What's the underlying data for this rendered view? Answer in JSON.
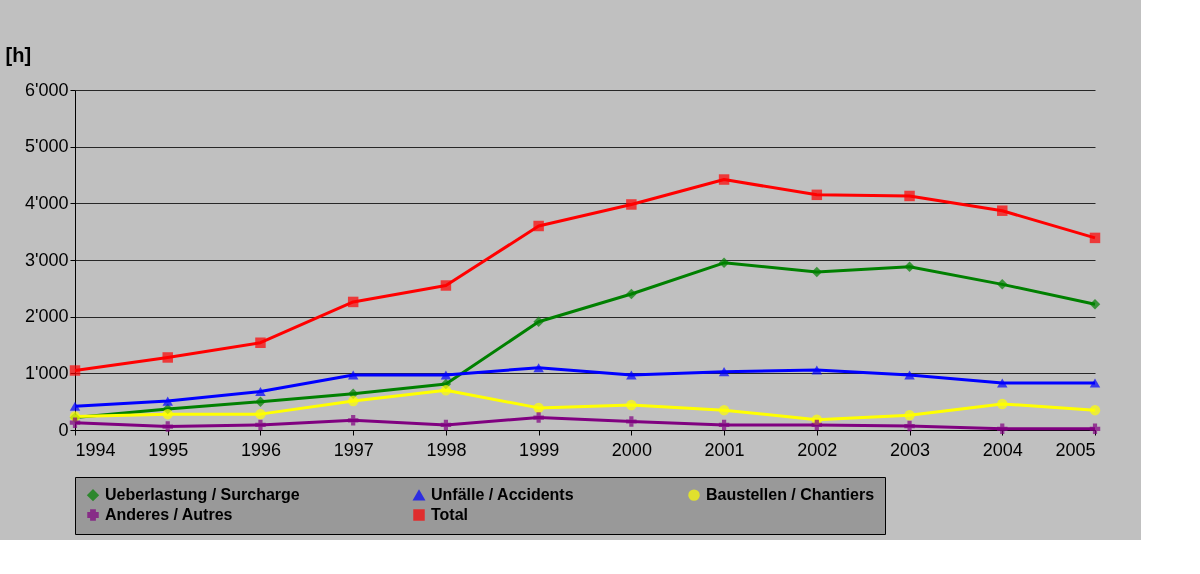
{
  "chart_data": {
    "type": "line",
    "ylabel": "[h]",
    "x": [
      1994,
      1995,
      1996,
      1997,
      1998,
      1999,
      2000,
      2001,
      2002,
      2003,
      2004,
      2005
    ],
    "xlim": [
      1994,
      2005
    ],
    "xticks": [
      1994,
      1995,
      1996,
      1997,
      1998,
      1999,
      2000,
      2001,
      2002,
      2003,
      2004,
      2005
    ],
    "ylim": [
      0,
      6000
    ],
    "yticks": [
      0,
      {
        "value": 1000,
        "label": "1'000"
      },
      {
        "value": 2000,
        "label": "2'000"
      },
      {
        "value": 3000,
        "label": "3'000"
      },
      {
        "value": 4000,
        "label": "4'000"
      },
      {
        "value": 5000,
        "label": "5'000"
      },
      {
        "value": 6000,
        "label": "6'000"
      }
    ],
    "grid": "y",
    "legend": "bottom",
    "line_style": "solid",
    "series": [
      {
        "name": "Ueberlastung / Surcharge",
        "color": "#008000",
        "marker": "diamond",
        "values": [
          220,
          370,
          500,
          640,
          810,
          1910,
          2400,
          2950,
          2790,
          2880,
          2570,
          2220
        ]
      },
      {
        "name": "Unfälle / Accidents",
        "color": "#0000ff",
        "marker": "triangle",
        "values": [
          420,
          510,
          680,
          970,
          970,
          1100,
          970,
          1030,
          1060,
          970,
          830,
          830
        ]
      },
      {
        "name": "Baustellen / Chantiers",
        "color": "#ffff00",
        "marker": "circle",
        "values": [
          240,
          280,
          280,
          510,
          700,
          390,
          440,
          350,
          180,
          260,
          460,
          350
        ]
      },
      {
        "name": "Anderes / Autres",
        "color": "#800080",
        "marker": "cross",
        "values": [
          130,
          60,
          90,
          170,
          90,
          220,
          150,
          90,
          90,
          70,
          20,
          20
        ]
      },
      {
        "name": "Total",
        "color": "#ff0000",
        "marker": "square",
        "values": [
          1050,
          1280,
          1540,
          2260,
          2550,
          3600,
          3980,
          4420,
          4150,
          4130,
          3870,
          3390
        ]
      }
    ]
  }
}
